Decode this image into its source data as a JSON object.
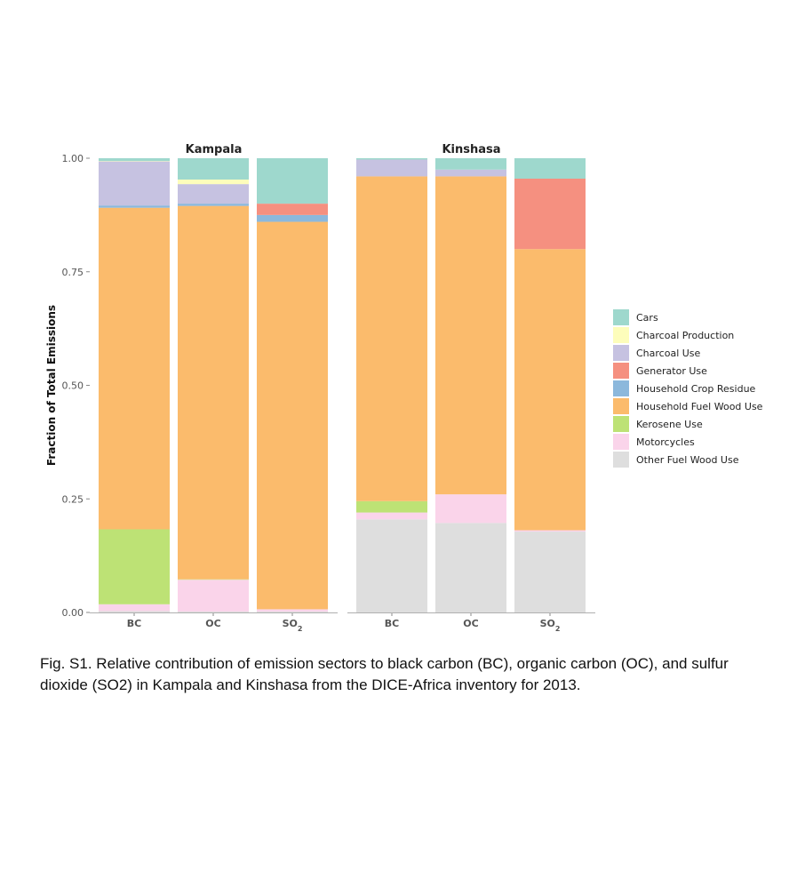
{
  "chart_data": {
    "type": "bar",
    "stacked": true,
    "ylabel": "Fraction of Total Emissions",
    "ylim": [
      0,
      1
    ],
    "yticks": [
      "0.00",
      "0.25",
      "0.50",
      "0.75",
      "1.00"
    ],
    "grid": false,
    "legend_position": "right",
    "categories": [
      {
        "text": "BC",
        "sub": ""
      },
      {
        "text": "OC",
        "sub": ""
      },
      {
        "text": "SO",
        "sub": "2"
      }
    ],
    "sectors": [
      {
        "name": "Cars",
        "color": "#9ed8cd"
      },
      {
        "name": "Charcoal Production",
        "color": "#fdfdbb"
      },
      {
        "name": "Charcoal Use",
        "color": "#c6c2e1"
      },
      {
        "name": "Generator Use",
        "color": "#f59080"
      },
      {
        "name": "Household Crop Residue",
        "color": "#8cb8dc"
      },
      {
        "name": "Household Fuel Wood Use",
        "color": "#fbbb6c"
      },
      {
        "name": "Kerosene Use",
        "color": "#bde275"
      },
      {
        "name": "Motorcycles",
        "color": "#fad4ea"
      },
      {
        "name": "Other Fuel Wood Use",
        "color": "#dedede"
      }
    ],
    "panels": [
      {
        "title": "Kampala",
        "values": {
          "Other Fuel Wood Use": [
            0.003,
            0.002,
            0.002
          ],
          "Motorcycles": [
            0.015,
            0.07,
            0.005
          ],
          "Kerosene Use": [
            0.165,
            0.001,
            0.0
          ],
          "Household Fuel Wood Use": [
            0.708,
            0.822,
            0.853
          ],
          "Household Crop Residue": [
            0.005,
            0.005,
            0.015
          ],
          "Generator Use": [
            0.0,
            0.0,
            0.025
          ],
          "Charcoal Use": [
            0.097,
            0.043,
            0.0
          ],
          "Charcoal Production": [
            0.001,
            0.01,
            0.0
          ],
          "Cars": [
            0.006,
            0.047,
            0.1
          ]
        }
      },
      {
        "title": "Kinshasa",
        "values": {
          "Other Fuel Wood Use": [
            0.205,
            0.197,
            0.178
          ],
          "Motorcycles": [
            0.015,
            0.063,
            0.003
          ],
          "Kerosene Use": [
            0.025,
            0.0,
            0.0
          ],
          "Household Fuel Wood Use": [
            0.715,
            0.7,
            0.619
          ],
          "Household Crop Residue": [
            0.0,
            0.0,
            0.0
          ],
          "Generator Use": [
            0.0,
            0.0,
            0.155
          ],
          "Charcoal Use": [
            0.037,
            0.015,
            0.0
          ],
          "Charcoal Production": [
            0.0,
            0.0,
            0.0
          ],
          "Cars": [
            0.003,
            0.025,
            0.045
          ]
        }
      }
    ]
  },
  "caption": "Fig. S1. Relative contribution of emission sectors to black carbon (BC), organic carbon (OC), and sulfur dioxide (SO2) in Kampala and Kinshasa from the DICE-Africa inventory for 2013."
}
